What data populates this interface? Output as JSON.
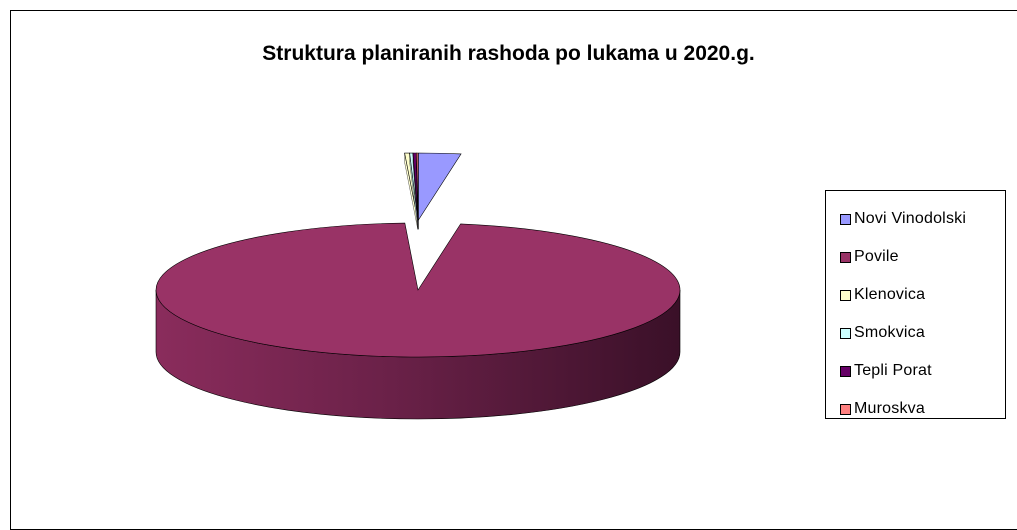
{
  "chart_data": {
    "type": "pie",
    "style": "3d-pie",
    "title": "Struktura planiranih rashoda po lukama u 2020.g.",
    "slices": [
      {
        "name": "Novi Vinodolski",
        "value": 2.6,
        "color": "#9999ff",
        "exploded": true
      },
      {
        "name": "Povile",
        "value": 96.6,
        "color": "#993366",
        "exploded": false
      },
      {
        "name": "Klenovica",
        "value": 0.3,
        "color": "#ffffcc",
        "exploded": true
      },
      {
        "name": "Smokvica",
        "value": 0.2,
        "color": "#ccffff",
        "exploded": true
      },
      {
        "name": "Tepli Porat",
        "value": 0.2,
        "color": "#660066",
        "exploded": true
      },
      {
        "name": "Muroskva",
        "value": 0.1,
        "color": "#ff8080",
        "exploded": true
      }
    ],
    "legend_position": "right",
    "grid": false
  }
}
